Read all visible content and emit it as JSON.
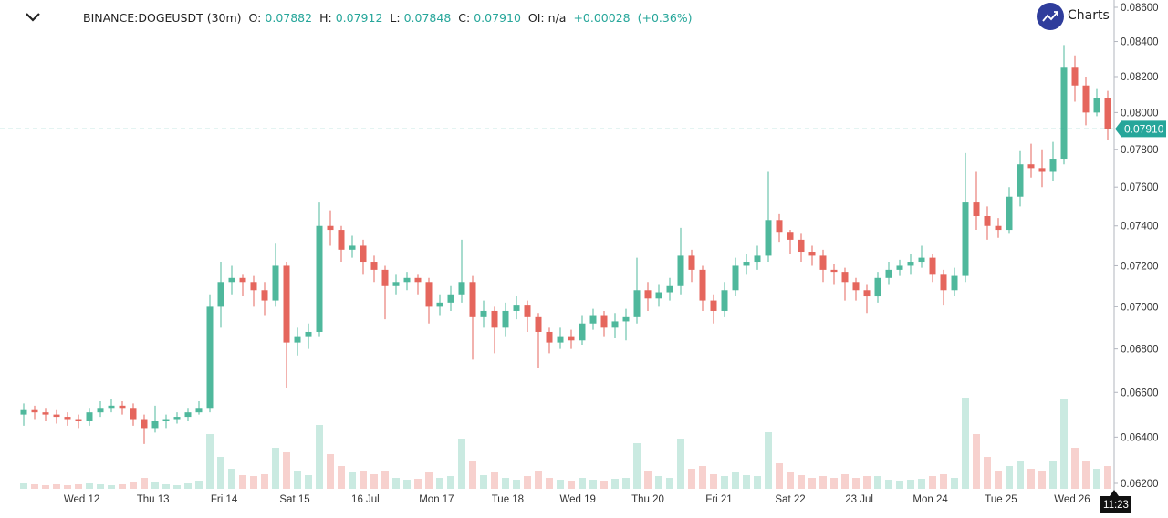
{
  "header": {
    "symbol": "BINANCE:DOGEUSDT (30m)",
    "o_label": "O:",
    "o_value": "0.07882",
    "h_label": "H:",
    "h_value": "0.07912",
    "l_label": "L:",
    "l_value": "0.07848",
    "c_label": "C:",
    "c_value": "0.07910",
    "oi_label": "OI:",
    "oi_value": "n/a",
    "change": "+0.00028",
    "change_pct": "(+0.36%)"
  },
  "logo": {
    "text": "Charts"
  },
  "colors": {
    "up": "#4fb89c",
    "down": "#e5665d",
    "axis": "#b2b5be",
    "price_line": "#26a69a",
    "logo": "#2f3d9c"
  },
  "chart_data": {
    "type": "candlestick",
    "title": "BINANCE:DOGEUSDT (30m)",
    "yscale": "log",
    "ylim": [
      0.062,
      0.086
    ],
    "y_ticks": [
      "0.08600",
      "0.08400",
      "0.08200",
      "0.08000",
      "0.07800",
      "0.07600",
      "0.07400",
      "0.07200",
      "0.07000",
      "0.06800",
      "0.06600",
      "0.06400",
      "0.06200"
    ],
    "x_ticks": [
      {
        "label": "Wed 12",
        "candle_index": 5.3
      },
      {
        "label": "Thu 13",
        "candle_index": 11.8
      },
      {
        "label": "Fri 14",
        "candle_index": 18.3
      },
      {
        "label": "Sat 15",
        "candle_index": 24.75
      },
      {
        "label": "16 Jul",
        "candle_index": 31.2
      },
      {
        "label": "Mon 17",
        "candle_index": 37.7
      },
      {
        "label": "Tue 18",
        "candle_index": 44.2
      },
      {
        "label": "Wed 19",
        "candle_index": 50.6
      },
      {
        "label": "Thu 20",
        "candle_index": 57
      },
      {
        "label": "Fri 21",
        "candle_index": 63.5
      },
      {
        "label": "Sat 22",
        "candle_index": 70
      },
      {
        "label": "23 Jul",
        "candle_index": 76.3
      },
      {
        "label": "Mon 24",
        "candle_index": 82.8
      },
      {
        "label": "Tue 25",
        "candle_index": 89.25
      },
      {
        "label": "Wed 26",
        "candle_index": 95.75
      }
    ],
    "last_price": "0.07910",
    "last_price_value": 0.0791,
    "crosshair_time": "11:23",
    "candles": [
      [
        0.065,
        0.0655,
        0.0645,
        0.0652
      ],
      [
        0.0652,
        0.0654,
        0.0648,
        0.0651
      ],
      [
        0.0651,
        0.0653,
        0.0647,
        0.065
      ],
      [
        0.065,
        0.0652,
        0.0646,
        0.0649
      ],
      [
        0.0649,
        0.0651,
        0.0645,
        0.0648
      ],
      [
        0.0648,
        0.065,
        0.0644,
        0.0647
      ],
      [
        0.0647,
        0.0653,
        0.0645,
        0.0651
      ],
      [
        0.0651,
        0.0656,
        0.0649,
        0.0653
      ],
      [
        0.0653,
        0.0657,
        0.0651,
        0.0654
      ],
      [
        0.0654,
        0.0656,
        0.065,
        0.0653
      ],
      [
        0.0653,
        0.0655,
        0.0645,
        0.0648
      ],
      [
        0.0648,
        0.065,
        0.0637,
        0.0644
      ],
      [
        0.0644,
        0.0654,
        0.0642,
        0.0647
      ],
      [
        0.0647,
        0.065,
        0.0644,
        0.0648
      ],
      [
        0.0648,
        0.0651,
        0.0646,
        0.0649
      ],
      [
        0.0649,
        0.0653,
        0.0647,
        0.0651
      ],
      [
        0.0651,
        0.0656,
        0.065,
        0.0653
      ],
      [
        0.0653,
        0.0706,
        0.0651,
        0.07
      ],
      [
        0.07,
        0.0722,
        0.069,
        0.0712
      ],
      [
        0.0712,
        0.072,
        0.0706,
        0.0714
      ],
      [
        0.0714,
        0.0716,
        0.0705,
        0.0712
      ],
      [
        0.0712,
        0.0715,
        0.07,
        0.0708
      ],
      [
        0.0708,
        0.0712,
        0.0696,
        0.0703
      ],
      [
        0.0703,
        0.0731,
        0.07,
        0.072
      ],
      [
        0.072,
        0.0722,
        0.0662,
        0.0683
      ],
      [
        0.0683,
        0.069,
        0.0677,
        0.0686
      ],
      [
        0.0686,
        0.0692,
        0.068,
        0.0688
      ],
      [
        0.0688,
        0.0752,
        0.0686,
        0.074
      ],
      [
        0.074,
        0.0748,
        0.073,
        0.0738
      ],
      [
        0.0738,
        0.074,
        0.0722,
        0.0728
      ],
      [
        0.0728,
        0.0735,
        0.0724,
        0.073
      ],
      [
        0.073,
        0.0733,
        0.0716,
        0.0722
      ],
      [
        0.0722,
        0.0725,
        0.0712,
        0.0718
      ],
      [
        0.0718,
        0.072,
        0.0694,
        0.071
      ],
      [
        0.071,
        0.0716,
        0.0706,
        0.0712
      ],
      [
        0.0712,
        0.0717,
        0.0708,
        0.0714
      ],
      [
        0.0714,
        0.0716,
        0.0706,
        0.0712
      ],
      [
        0.0712,
        0.0714,
        0.0692,
        0.07
      ],
      [
        0.07,
        0.0706,
        0.0696,
        0.0702
      ],
      [
        0.0702,
        0.071,
        0.0698,
        0.0706
      ],
      [
        0.0706,
        0.0733,
        0.0702,
        0.0712
      ],
      [
        0.0712,
        0.0715,
        0.0675,
        0.0695
      ],
      [
        0.0695,
        0.0703,
        0.069,
        0.0698
      ],
      [
        0.0698,
        0.07,
        0.0678,
        0.069
      ],
      [
        0.069,
        0.0702,
        0.0686,
        0.0698
      ],
      [
        0.0698,
        0.0705,
        0.0694,
        0.0701
      ],
      [
        0.0701,
        0.0703,
        0.0688,
        0.0695
      ],
      [
        0.0695,
        0.0697,
        0.0671,
        0.0688
      ],
      [
        0.0688,
        0.069,
        0.0678,
        0.0683
      ],
      [
        0.0683,
        0.069,
        0.068,
        0.0686
      ],
      [
        0.0686,
        0.0689,
        0.068,
        0.0684
      ],
      [
        0.0684,
        0.0696,
        0.0682,
        0.0692
      ],
      [
        0.0692,
        0.0699,
        0.0689,
        0.0696
      ],
      [
        0.0696,
        0.0698,
        0.0686,
        0.069
      ],
      [
        0.069,
        0.0697,
        0.0685,
        0.0693
      ],
      [
        0.0693,
        0.0699,
        0.0684,
        0.0695
      ],
      [
        0.0695,
        0.0724,
        0.0692,
        0.0708
      ],
      [
        0.0708,
        0.0712,
        0.0698,
        0.0704
      ],
      [
        0.0704,
        0.0711,
        0.07,
        0.0707
      ],
      [
        0.0707,
        0.0714,
        0.0703,
        0.071
      ],
      [
        0.071,
        0.0739,
        0.0706,
        0.0725
      ],
      [
        0.0725,
        0.0728,
        0.0712,
        0.0718
      ],
      [
        0.0718,
        0.072,
        0.0698,
        0.0703
      ],
      [
        0.0703,
        0.0706,
        0.0692,
        0.0698
      ],
      [
        0.0698,
        0.0712,
        0.0695,
        0.0708
      ],
      [
        0.0708,
        0.0724,
        0.0705,
        0.072
      ],
      [
        0.072,
        0.0726,
        0.0716,
        0.0722
      ],
      [
        0.0722,
        0.073,
        0.0718,
        0.0725
      ],
      [
        0.0725,
        0.0768,
        0.0722,
        0.0743
      ],
      [
        0.0743,
        0.0746,
        0.0732,
        0.0737
      ],
      [
        0.0737,
        0.0738,
        0.0726,
        0.0733
      ],
      [
        0.0733,
        0.0736,
        0.0722,
        0.0727
      ],
      [
        0.0727,
        0.073,
        0.072,
        0.0725
      ],
      [
        0.0725,
        0.0728,
        0.0712,
        0.0718
      ],
      [
        0.0718,
        0.0721,
        0.0711,
        0.0717
      ],
      [
        0.0717,
        0.0719,
        0.0703,
        0.0712
      ],
      [
        0.0712,
        0.0714,
        0.0703,
        0.0708
      ],
      [
        0.0708,
        0.0711,
        0.0697,
        0.0705
      ],
      [
        0.0705,
        0.0717,
        0.0702,
        0.0714
      ],
      [
        0.0714,
        0.0722,
        0.0711,
        0.0718
      ],
      [
        0.0718,
        0.0723,
        0.0715,
        0.072
      ],
      [
        0.072,
        0.0726,
        0.0716,
        0.0722
      ],
      [
        0.0722,
        0.073,
        0.0719,
        0.0724
      ],
      [
        0.0724,
        0.0726,
        0.0712,
        0.0716
      ],
      [
        0.0716,
        0.0718,
        0.0701,
        0.0708
      ],
      [
        0.0708,
        0.0719,
        0.0705,
        0.0715
      ],
      [
        0.0715,
        0.0778,
        0.0712,
        0.0752
      ],
      [
        0.0752,
        0.0768,
        0.0738,
        0.0745
      ],
      [
        0.0745,
        0.075,
        0.0733,
        0.074
      ],
      [
        0.074,
        0.0744,
        0.0734,
        0.0738
      ],
      [
        0.0738,
        0.076,
        0.0736,
        0.0755
      ],
      [
        0.0755,
        0.0779,
        0.075,
        0.0772
      ],
      [
        0.0772,
        0.0783,
        0.0765,
        0.077
      ],
      [
        0.077,
        0.078,
        0.076,
        0.0768
      ],
      [
        0.0768,
        0.0784,
        0.0763,
        0.0775
      ],
      [
        0.0775,
        0.0838,
        0.0772,
        0.0825
      ],
      [
        0.0825,
        0.0832,
        0.0806,
        0.0815
      ],
      [
        0.0815,
        0.082,
        0.0793,
        0.08
      ],
      [
        0.08,
        0.0813,
        0.0798,
        0.0808
      ],
      [
        0.0808,
        0.0812,
        0.0785,
        0.0791
      ]
    ],
    "volume": [
      6,
      5,
      4,
      5,
      4,
      5,
      6,
      5,
      4,
      5,
      8,
      12,
      7,
      5,
      4,
      6,
      9,
      60,
      35,
      22,
      15,
      14,
      16,
      45,
      40,
      20,
      15,
      70,
      38,
      25,
      18,
      20,
      16,
      20,
      12,
      10,
      11,
      18,
      12,
      14,
      55,
      30,
      15,
      18,
      12,
      10,
      14,
      20,
      12,
      10,
      9,
      12,
      10,
      9,
      11,
      12,
      50,
      20,
      14,
      12,
      55,
      22,
      25,
      16,
      14,
      18,
      15,
      14,
      62,
      28,
      18,
      15,
      12,
      14,
      12,
      16,
      12,
      14,
      14,
      10,
      9,
      10,
      11,
      14,
      16,
      12,
      100,
      60,
      35,
      20,
      25,
      30,
      22,
      20,
      30,
      98,
      45,
      30,
      22,
      25
    ]
  }
}
